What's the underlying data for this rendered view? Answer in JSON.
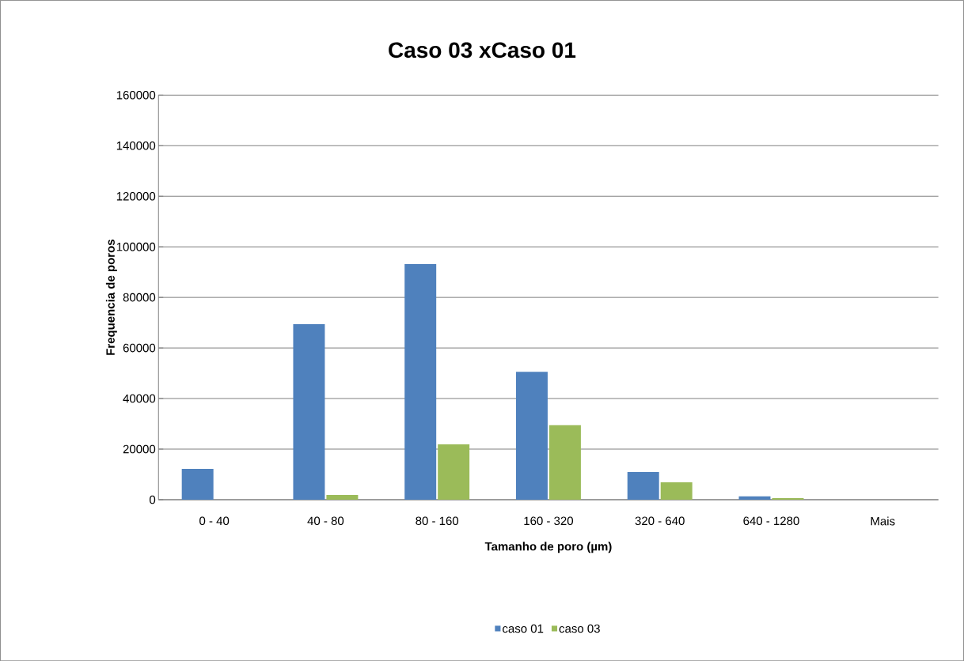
{
  "chart_data": {
    "type": "bar",
    "title": "Caso 03 xCaso 01",
    "xlabel": "Tamanho de poro (µm)",
    "ylabel": "Frequencia de poros",
    "categories": [
      "0 - 40",
      "40 - 80",
      "80 - 160",
      "160 - 320",
      "320 - 640",
      "640 - 1280",
      "Mais"
    ],
    "series": [
      {
        "name": "caso 01",
        "color": "#4f81bd",
        "values": [
          12200,
          69400,
          93200,
          50600,
          10900,
          1300,
          0
        ]
      },
      {
        "name": "caso 03",
        "color": "#9bbb59",
        "values": [
          0,
          1900,
          21900,
          29500,
          6900,
          600,
          0
        ]
      }
    ],
    "ylim": [
      0,
      160000
    ],
    "yticks": [
      0,
      20000,
      40000,
      60000,
      80000,
      100000,
      120000,
      140000,
      160000
    ],
    "grid": "y",
    "legend": "bottom"
  }
}
